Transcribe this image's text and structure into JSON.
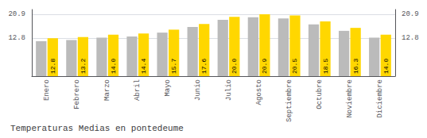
{
  "chart_data": {
    "type": "bar",
    "title": "Temperaturas Medias en pontedeume",
    "categories": [
      "Enero",
      "Febrero",
      "Marzo",
      "Abril",
      "Mayo",
      "Junio",
      "Julio",
      "Agosto",
      "Septiembre",
      "Octubre",
      "Noviembre",
      "Diciembre"
    ],
    "series": [
      {
        "color": "#BBBBBB",
        "values": [
          11.8,
          12.2,
          13.0,
          13.4,
          14.7,
          16.6,
          19.0,
          19.9,
          19.5,
          17.5,
          15.3,
          13.0
        ]
      },
      {
        "color": "#FFD700",
        "values": [
          12.8,
          13.2,
          14.0,
          14.4,
          15.7,
          17.6,
          20.0,
          20.9,
          20.5,
          18.5,
          16.3,
          14.0
        ],
        "data_labels": true,
        "value_labels": [
          "12.8",
          "13.2",
          "14.0",
          "14.4",
          "15.7",
          "17.6",
          "20.0",
          "20.9",
          "20.5",
          "18.5",
          "16.3",
          "14.0"
        ]
      }
    ],
    "ylim": [
      0.0,
      22.5
    ],
    "yticks": [
      12.8,
      20.9
    ],
    "y2lim": [
      0.0,
      22.5
    ],
    "y2ticks": [
      12.8,
      20.9
    ],
    "grid": true
  }
}
